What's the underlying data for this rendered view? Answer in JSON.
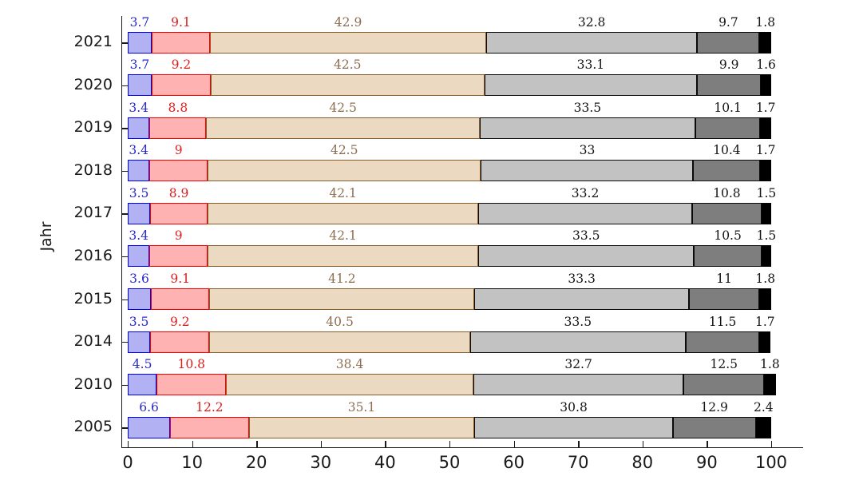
{
  "chart_data": {
    "type": "bar",
    "orientation": "horizontal",
    "stacked": true,
    "title": "",
    "xlabel": "",
    "ylabel": "Jahr",
    "xlim": [
      0,
      100
    ],
    "xticks": [
      0,
      10,
      20,
      30,
      40,
      50,
      60,
      70,
      80,
      90,
      100
    ],
    "grid": false,
    "legend": "none",
    "categories": [
      "2021",
      "2020",
      "2019",
      "2018",
      "2017",
      "2016",
      "2015",
      "2014",
      "2010",
      "2005"
    ],
    "series": [
      {
        "name": "segment-blue",
        "fill": "#b1b1f3",
        "border": "#0000f0",
        "label_color": "#2929cc",
        "values": [
          3.7,
          3.7,
          3.4,
          3.4,
          3.5,
          3.4,
          3.6,
          3.5,
          4.5,
          6.6
        ]
      },
      {
        "name": "segment-red",
        "fill": "#ffb2b2",
        "border": "#f50000",
        "label_color": "#dd1c1c",
        "values": [
          9.1,
          9.2,
          8.8,
          9,
          8.9,
          9,
          9.1,
          9.2,
          10.8,
          12.2
        ]
      },
      {
        "name": "segment-tan",
        "fill": "#ecd9c2",
        "border": "#8a5c28",
        "label_color": "#8c6e50",
        "values": [
          42.9,
          42.5,
          42.5,
          42.5,
          42.1,
          42.1,
          41.2,
          40.5,
          38.4,
          35.1
        ]
      },
      {
        "name": "segment-lightgray",
        "fill": "#c2c2c2",
        "border": "#0a0a0a",
        "label_color": "#141414",
        "values": [
          32.8,
          33.1,
          33.5,
          33,
          33.2,
          33.5,
          33.3,
          33.5,
          32.7,
          30.8
        ]
      },
      {
        "name": "segment-darkgray",
        "fill": "#7e7e7e",
        "border": "#0a0a0a",
        "label_color": "#141414",
        "values": [
          9.7,
          9.9,
          10.1,
          10.4,
          10.8,
          10.5,
          11,
          11.5,
          12.5,
          12.9
        ]
      },
      {
        "name": "segment-black",
        "fill": "#000000",
        "border": "#000000",
        "label_color": "#141414",
        "values": [
          1.8,
          1.6,
          1.7,
          1.7,
          1.5,
          1.5,
          1.8,
          1.7,
          1.8,
          2.4
        ]
      }
    ]
  }
}
